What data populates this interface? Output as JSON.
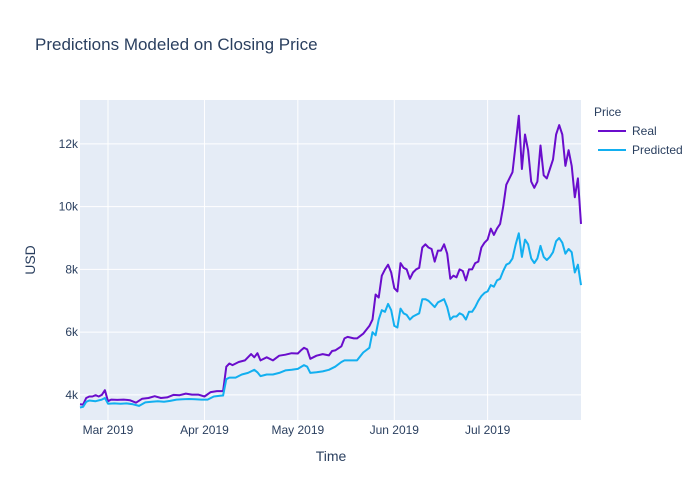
{
  "chart_data": {
    "type": "line",
    "title": "Predictions Modeled on Closing Price",
    "xlabel": "Time",
    "ylabel": "USD",
    "x_start": "2019-02-20",
    "x_end": "2019-07-31",
    "xlim": [
      "2019-02-20",
      "2019-07-31"
    ],
    "ylim": [
      3200,
      13400
    ],
    "x_ticks": [
      {
        "date": "2019-03-01",
        "label": "Mar 2019"
      },
      {
        "date": "2019-04-01",
        "label": "Apr 2019"
      },
      {
        "date": "2019-05-01",
        "label": "May 2019"
      },
      {
        "date": "2019-06-01",
        "label": "Jun 2019"
      },
      {
        "date": "2019-07-01",
        "label": "Jul 2019"
      }
    ],
    "y_ticks": [
      {
        "value": 4000,
        "label": "4k"
      },
      {
        "value": 6000,
        "label": "6k"
      },
      {
        "value": 8000,
        "label": "8k"
      },
      {
        "value": 10000,
        "label": "10k"
      },
      {
        "value": 12000,
        "label": "12k"
      }
    ],
    "grid": true,
    "legend": {
      "title": "Price",
      "position": "top-right"
    },
    "series": [
      {
        "name": "Real",
        "color": "#6a0dcc",
        "points": [
          [
            "2019-02-20",
            3700
          ],
          [
            "2019-02-21",
            3690
          ],
          [
            "2019-02-22",
            3900
          ],
          [
            "2019-02-23",
            3950
          ],
          [
            "2019-02-24",
            3950
          ],
          [
            "2019-02-25",
            3990
          ],
          [
            "2019-02-26",
            3950
          ],
          [
            "2019-02-27",
            4000
          ],
          [
            "2019-02-28",
            4150
          ],
          [
            "2019-03-01",
            3800
          ],
          [
            "2019-03-02",
            3850
          ],
          [
            "2019-03-04",
            3840
          ],
          [
            "2019-03-06",
            3850
          ],
          [
            "2019-03-08",
            3830
          ],
          [
            "2019-03-10",
            3750
          ],
          [
            "2019-03-12",
            3880
          ],
          [
            "2019-03-14",
            3900
          ],
          [
            "2019-03-16",
            3960
          ],
          [
            "2019-03-18",
            3900
          ],
          [
            "2019-03-20",
            3920
          ],
          [
            "2019-03-22",
            4000
          ],
          [
            "2019-03-24",
            3990
          ],
          [
            "2019-03-26",
            4040
          ],
          [
            "2019-03-28",
            4010
          ],
          [
            "2019-03-30",
            4010
          ],
          [
            "2019-04-01",
            3950
          ],
          [
            "2019-04-03",
            4090
          ],
          [
            "2019-04-05",
            4120
          ],
          [
            "2019-04-07",
            4120
          ],
          [
            "2019-04-08",
            4900
          ],
          [
            "2019-04-09",
            5000
          ],
          [
            "2019-04-10",
            4950
          ],
          [
            "2019-04-12",
            5050
          ],
          [
            "2019-04-14",
            5100
          ],
          [
            "2019-04-16",
            5300
          ],
          [
            "2019-04-17",
            5200
          ],
          [
            "2019-04-18",
            5330
          ],
          [
            "2019-04-19",
            5100
          ],
          [
            "2019-04-21",
            5200
          ],
          [
            "2019-04-23",
            5100
          ],
          [
            "2019-04-25",
            5250
          ],
          [
            "2019-04-27",
            5280
          ],
          [
            "2019-04-29",
            5330
          ],
          [
            "2019-05-01",
            5320
          ],
          [
            "2019-05-02",
            5420
          ],
          [
            "2019-05-03",
            5500
          ],
          [
            "2019-05-04",
            5450
          ],
          [
            "2019-05-05",
            5150
          ],
          [
            "2019-05-07",
            5250
          ],
          [
            "2019-05-09",
            5300
          ],
          [
            "2019-05-11",
            5260
          ],
          [
            "2019-05-12",
            5400
          ],
          [
            "2019-05-13",
            5420
          ],
          [
            "2019-05-15",
            5550
          ],
          [
            "2019-05-16",
            5800
          ],
          [
            "2019-05-17",
            5850
          ],
          [
            "2019-05-19",
            5800
          ],
          [
            "2019-05-20",
            5800
          ],
          [
            "2019-05-22",
            5950
          ],
          [
            "2019-05-24",
            6200
          ],
          [
            "2019-05-25",
            6400
          ],
          [
            "2019-05-26",
            7200
          ],
          [
            "2019-05-27",
            7100
          ],
          [
            "2019-05-28",
            7800
          ],
          [
            "2019-05-29",
            8000
          ],
          [
            "2019-05-30",
            8150
          ],
          [
            "2019-05-31",
            7900
          ],
          [
            "2019-06-01",
            7400
          ],
          [
            "2019-06-02",
            7300
          ],
          [
            "2019-06-03",
            8200
          ],
          [
            "2019-06-04",
            8050
          ],
          [
            "2019-06-05",
            8000
          ],
          [
            "2019-06-06",
            7700
          ],
          [
            "2019-06-07",
            7900
          ],
          [
            "2019-06-08",
            8000
          ],
          [
            "2019-06-09",
            8050
          ],
          [
            "2019-06-10",
            8700
          ],
          [
            "2019-06-11",
            8800
          ],
          [
            "2019-06-12",
            8700
          ],
          [
            "2019-06-13",
            8650
          ],
          [
            "2019-06-14",
            8250
          ],
          [
            "2019-06-15",
            8600
          ],
          [
            "2019-06-16",
            8600
          ],
          [
            "2019-06-17",
            8800
          ],
          [
            "2019-06-18",
            8500
          ],
          [
            "2019-06-19",
            7700
          ],
          [
            "2019-06-20",
            7800
          ],
          [
            "2019-06-21",
            7750
          ],
          [
            "2019-06-22",
            8000
          ],
          [
            "2019-06-23",
            7950
          ],
          [
            "2019-06-24",
            7650
          ],
          [
            "2019-06-25",
            8000
          ],
          [
            "2019-06-26",
            8000
          ],
          [
            "2019-06-27",
            8200
          ],
          [
            "2019-06-28",
            8250
          ],
          [
            "2019-06-29",
            8700
          ],
          [
            "2019-06-30",
            8850
          ],
          [
            "2019-07-01",
            8950
          ],
          [
            "2019-07-02",
            9300
          ],
          [
            "2019-07-03",
            9100
          ],
          [
            "2019-07-04",
            9300
          ],
          [
            "2019-07-05",
            9450
          ],
          [
            "2019-07-06",
            10000
          ],
          [
            "2019-07-07",
            10700
          ],
          [
            "2019-07-08",
            10900
          ],
          [
            "2019-07-09",
            11100
          ],
          [
            "2019-07-10",
            12000
          ],
          [
            "2019-07-11",
            12900
          ],
          [
            "2019-07-12",
            11200
          ],
          [
            "2019-07-13",
            12300
          ],
          [
            "2019-07-14",
            11800
          ],
          [
            "2019-07-15",
            10800
          ],
          [
            "2019-07-16",
            10600
          ],
          [
            "2019-07-17",
            10800
          ],
          [
            "2019-07-18",
            11950
          ],
          [
            "2019-07-19",
            11000
          ],
          [
            "2019-07-20",
            10900
          ],
          [
            "2019-07-21",
            11200
          ],
          [
            "2019-07-22",
            11500
          ],
          [
            "2019-07-23",
            12300
          ],
          [
            "2019-07-24",
            12600
          ],
          [
            "2019-07-25",
            12300
          ],
          [
            "2019-07-26",
            11300
          ],
          [
            "2019-07-27",
            11800
          ],
          [
            "2019-07-28",
            11300
          ],
          [
            "2019-07-29",
            10300
          ],
          [
            "2019-07-30",
            10900
          ],
          [
            "2019-07-31",
            9450
          ]
        ]
      },
      {
        "name": "Predicted",
        "color": "#12aff0",
        "points": [
          [
            "2019-02-20",
            3600
          ],
          [
            "2019-02-21",
            3620
          ],
          [
            "2019-02-22",
            3780
          ],
          [
            "2019-02-23",
            3820
          ],
          [
            "2019-02-25",
            3800
          ],
          [
            "2019-02-27",
            3850
          ],
          [
            "2019-02-28",
            3900
          ],
          [
            "2019-03-01",
            3720
          ],
          [
            "2019-03-03",
            3730
          ],
          [
            "2019-03-05",
            3720
          ],
          [
            "2019-03-07",
            3730
          ],
          [
            "2019-03-09",
            3700
          ],
          [
            "2019-03-11",
            3650
          ],
          [
            "2019-03-13",
            3760
          ],
          [
            "2019-03-15",
            3780
          ],
          [
            "2019-03-17",
            3800
          ],
          [
            "2019-03-19",
            3780
          ],
          [
            "2019-03-21",
            3810
          ],
          [
            "2019-03-23",
            3850
          ],
          [
            "2019-03-25",
            3860
          ],
          [
            "2019-03-27",
            3870
          ],
          [
            "2019-03-29",
            3860
          ],
          [
            "2019-03-31",
            3850
          ],
          [
            "2019-04-02",
            3850
          ],
          [
            "2019-04-04",
            3950
          ],
          [
            "2019-04-06",
            3970
          ],
          [
            "2019-04-07",
            3980
          ],
          [
            "2019-04-08",
            4500
          ],
          [
            "2019-04-09",
            4550
          ],
          [
            "2019-04-11",
            4550
          ],
          [
            "2019-04-13",
            4650
          ],
          [
            "2019-04-15",
            4700
          ],
          [
            "2019-04-17",
            4800
          ],
          [
            "2019-04-18",
            4720
          ],
          [
            "2019-04-19",
            4600
          ],
          [
            "2019-04-21",
            4650
          ],
          [
            "2019-04-23",
            4650
          ],
          [
            "2019-04-25",
            4700
          ],
          [
            "2019-04-27",
            4780
          ],
          [
            "2019-04-29",
            4800
          ],
          [
            "2019-05-01",
            4830
          ],
          [
            "2019-05-03",
            4950
          ],
          [
            "2019-05-04",
            4900
          ],
          [
            "2019-05-05",
            4700
          ],
          [
            "2019-05-07",
            4720
          ],
          [
            "2019-05-09",
            4750
          ],
          [
            "2019-05-11",
            4800
          ],
          [
            "2019-05-13",
            4900
          ],
          [
            "2019-05-15",
            5050
          ],
          [
            "2019-05-16",
            5100
          ],
          [
            "2019-05-18",
            5100
          ],
          [
            "2019-05-20",
            5100
          ],
          [
            "2019-05-22",
            5350
          ],
          [
            "2019-05-24",
            5500
          ],
          [
            "2019-05-25",
            6000
          ],
          [
            "2019-05-26",
            5900
          ],
          [
            "2019-05-27",
            6400
          ],
          [
            "2019-05-28",
            6700
          ],
          [
            "2019-05-29",
            6650
          ],
          [
            "2019-05-30",
            6900
          ],
          [
            "2019-05-31",
            6700
          ],
          [
            "2019-06-01",
            6200
          ],
          [
            "2019-06-02",
            6150
          ],
          [
            "2019-06-03",
            6750
          ],
          [
            "2019-06-04",
            6600
          ],
          [
            "2019-06-05",
            6550
          ],
          [
            "2019-06-06",
            6400
          ],
          [
            "2019-06-07",
            6500
          ],
          [
            "2019-06-08",
            6550
          ],
          [
            "2019-06-09",
            6600
          ],
          [
            "2019-06-10",
            7050
          ],
          [
            "2019-06-11",
            7050
          ],
          [
            "2019-06-12",
            7000
          ],
          [
            "2019-06-13",
            6900
          ],
          [
            "2019-06-14",
            6800
          ],
          [
            "2019-06-15",
            6950
          ],
          [
            "2019-06-16",
            7000
          ],
          [
            "2019-06-17",
            7050
          ],
          [
            "2019-06-18",
            6800
          ],
          [
            "2019-06-19",
            6400
          ],
          [
            "2019-06-20",
            6500
          ],
          [
            "2019-06-21",
            6500
          ],
          [
            "2019-06-22",
            6600
          ],
          [
            "2019-06-23",
            6550
          ],
          [
            "2019-06-24",
            6400
          ],
          [
            "2019-06-25",
            6650
          ],
          [
            "2019-06-26",
            6650
          ],
          [
            "2019-06-27",
            6800
          ],
          [
            "2019-06-28",
            7000
          ],
          [
            "2019-06-29",
            7150
          ],
          [
            "2019-06-30",
            7250
          ],
          [
            "2019-07-01",
            7300
          ],
          [
            "2019-07-02",
            7500
          ],
          [
            "2019-07-03",
            7450
          ],
          [
            "2019-07-04",
            7650
          ],
          [
            "2019-07-05",
            7700
          ],
          [
            "2019-07-06",
            7950
          ],
          [
            "2019-07-07",
            8150
          ],
          [
            "2019-07-08",
            8200
          ],
          [
            "2019-07-09",
            8350
          ],
          [
            "2019-07-10",
            8800
          ],
          [
            "2019-07-11",
            9150
          ],
          [
            "2019-07-12",
            8400
          ],
          [
            "2019-07-13",
            8950
          ],
          [
            "2019-07-14",
            8800
          ],
          [
            "2019-07-15",
            8350
          ],
          [
            "2019-07-16",
            8200
          ],
          [
            "2019-07-17",
            8350
          ],
          [
            "2019-07-18",
            8750
          ],
          [
            "2019-07-19",
            8400
          ],
          [
            "2019-07-20",
            8300
          ],
          [
            "2019-07-21",
            8400
          ],
          [
            "2019-07-22",
            8550
          ],
          [
            "2019-07-23",
            8900
          ],
          [
            "2019-07-24",
            9000
          ],
          [
            "2019-07-25",
            8850
          ],
          [
            "2019-07-26",
            8500
          ],
          [
            "2019-07-27",
            8650
          ],
          [
            "2019-07-28",
            8550
          ],
          [
            "2019-07-29",
            7900
          ],
          [
            "2019-07-30",
            8150
          ],
          [
            "2019-07-31",
            7500
          ]
        ]
      }
    ]
  }
}
